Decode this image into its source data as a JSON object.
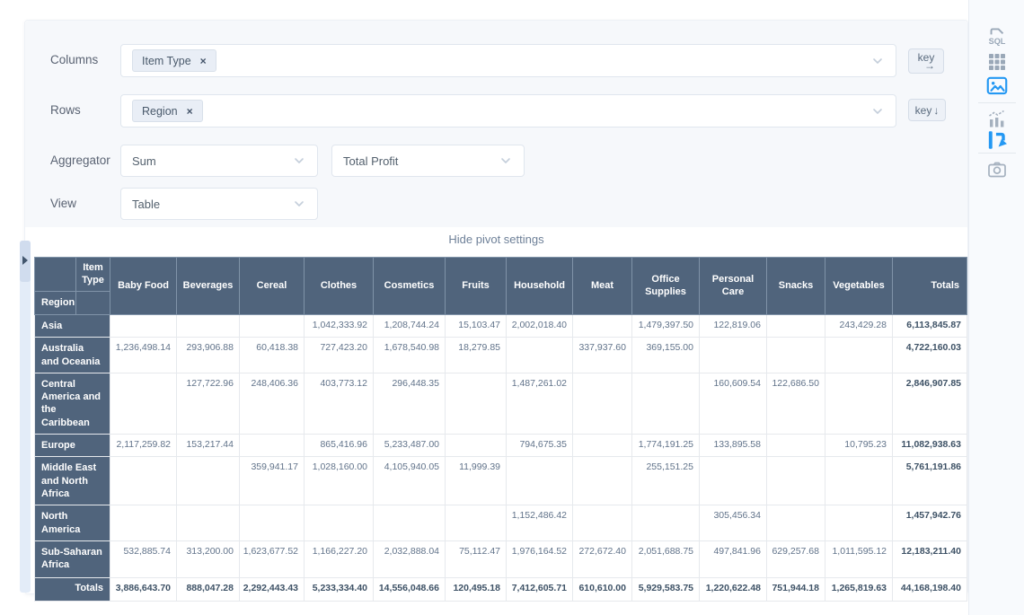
{
  "settings": {
    "columns_row": {
      "label": "Columns",
      "tag": "Item Type",
      "remove_glyph": "×",
      "key_label": "key",
      "key_arrow": "→"
    },
    "rows_row": {
      "label": "Rows",
      "tag": "Region",
      "remove_glyph": "×",
      "key_label": "key",
      "key_arrow": "↓"
    },
    "aggregator_row": {
      "label": "Aggregator",
      "aggregator": "Sum",
      "value_field": "Total Profit"
    },
    "view_row": {
      "label": "View",
      "view": "Table"
    },
    "hide_link": "Hide pivot settings"
  },
  "sidebar": {
    "sql_label": "SQL"
  },
  "colors": {
    "accent_blue": "#2498f3",
    "table_header_bg": "#50647c"
  },
  "pivot_table": {
    "col_axis": "Item Type",
    "row_axis": "Region",
    "totals_col_label": "Totals",
    "columns": [
      "Baby Food",
      "Beverages",
      "Cereal",
      "Clothes",
      "Cosmetics",
      "Fruits",
      "Household",
      "Meat",
      "Office Supplies",
      "Personal Care",
      "Snacks",
      "Vegetables"
    ],
    "rows": [
      {
        "label": "Asia",
        "values": [
          "",
          "",
          "",
          "1,042,333.92",
          "1,208,744.24",
          "15,103.47",
          "2,002,018.40",
          "",
          "1,479,397.50",
          "122,819.06",
          "",
          "243,429.28"
        ],
        "total": "6,113,845.87"
      },
      {
        "label": "Australia and Oceania",
        "values": [
          "1,236,498.14",
          "293,906.88",
          "60,418.38",
          "727,423.20",
          "1,678,540.98",
          "18,279.85",
          "",
          "337,937.60",
          "369,155.00",
          "",
          "",
          ""
        ],
        "total": "4,722,160.03"
      },
      {
        "label": "Central America and the Caribbean",
        "values": [
          "",
          "127,722.96",
          "248,406.36",
          "403,773.12",
          "296,448.35",
          "",
          "1,487,261.02",
          "",
          "",
          "160,609.54",
          "122,686.50",
          ""
        ],
        "total": "2,846,907.85"
      },
      {
        "label": "Europe",
        "values": [
          "2,117,259.82",
          "153,217.44",
          "",
          "865,416.96",
          "5,233,487.00",
          "",
          "794,675.35",
          "",
          "1,774,191.25",
          "133,895.58",
          "",
          "10,795.23"
        ],
        "total": "11,082,938.63"
      },
      {
        "label": "Middle East and North Africa",
        "values": [
          "",
          "",
          "359,941.17",
          "1,028,160.00",
          "4,105,940.05",
          "11,999.39",
          "",
          "",
          "255,151.25",
          "",
          "",
          ""
        ],
        "total": "5,761,191.86"
      },
      {
        "label": "North America",
        "values": [
          "",
          "",
          "",
          "",
          "",
          "",
          "1,152,486.42",
          "",
          "",
          "305,456.34",
          "",
          ""
        ],
        "total": "1,457,942.76"
      },
      {
        "label": "Sub-Saharan Africa",
        "values": [
          "532,885.74",
          "313,200.00",
          "1,623,677.52",
          "1,166,227.20",
          "2,032,888.04",
          "75,112.47",
          "1,976,164.52",
          "272,672.40",
          "2,051,688.75",
          "497,841.96",
          "629,257.68",
          "1,011,595.12"
        ],
        "total": "12,183,211.40"
      }
    ],
    "totals_row": {
      "label": "Totals",
      "values": [
        "3,886,643.70",
        "888,047.28",
        "2,292,443.43",
        "5,233,334.40",
        "14,556,048.66",
        "120,495.18",
        "7,412,605.71",
        "610,610.00",
        "5,929,583.75",
        "1,220,622.48",
        "751,944.18",
        "1,265,819.63"
      ],
      "grand_total": "44,168,198.40"
    }
  }
}
